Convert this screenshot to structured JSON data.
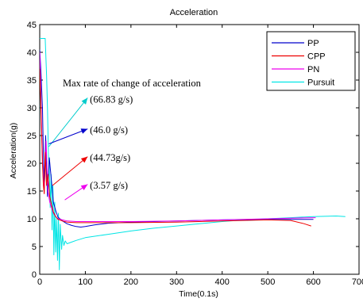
{
  "chart_data": {
    "type": "line",
    "title": "Acceleration",
    "xlabel": "Time(0.1s)",
    "ylabel": "Acceleration(g)",
    "xlim": [
      0,
      700
    ],
    "ylim": [
      0,
      45
    ],
    "xticks": [
      0,
      100,
      200,
      300,
      400,
      500,
      600,
      700
    ],
    "yticks": [
      0,
      5,
      10,
      15,
      20,
      25,
      30,
      35,
      40,
      45
    ],
    "xtick_labels": [
      "0",
      "100",
      "200",
      "300",
      "400",
      "500",
      "600",
      "700"
    ],
    "ytick_labels": [
      "0",
      "5",
      "10",
      "15",
      "20",
      "25",
      "30",
      "35",
      "40",
      "45"
    ],
    "grid": false,
    "legend_position": "top-right",
    "series": [
      {
        "name": "PP",
        "color": "#0000cc",
        "x": [
          0,
          3,
          6,
          8,
          10,
          13,
          17,
          21,
          25,
          30,
          35,
          40,
          50,
          60,
          70,
          80,
          90,
          100,
          120,
          150,
          200,
          300,
          400,
          500,
          600
        ],
        "y": [
          40.5,
          36,
          30,
          22,
          16,
          25,
          14,
          21,
          17.5,
          13,
          11.5,
          10.3,
          9.6,
          9.1,
          8.8,
          8.6,
          8.5,
          8.6,
          8.9,
          9.2,
          9.4,
          9.6,
          9.8,
          9.9,
          9.9
        ]
      },
      {
        "name": "CPP",
        "color": "#ee0000",
        "x": [
          0,
          2,
          4,
          6,
          8,
          10,
          12,
          15,
          18,
          22,
          26,
          30,
          35,
          40,
          50,
          60,
          80,
          100,
          150,
          200,
          300,
          400,
          500,
          550,
          580,
          595
        ],
        "y": [
          37,
          32,
          26,
          20,
          16,
          14.5,
          22,
          16,
          18,
          14,
          12.5,
          11.2,
          10.4,
          9.9,
          9.6,
          9.4,
          9.3,
          9.3,
          9.3,
          9.3,
          9.4,
          9.6,
          9.8,
          9.7,
          9.1,
          8.7
        ]
      },
      {
        "name": "PN",
        "color": "#ee00ee",
        "x": [
          0,
          2,
          4,
          6,
          8,
          10,
          14,
          18,
          22,
          26,
          30,
          35,
          40,
          50,
          60,
          80,
          100,
          150,
          200,
          300,
          400,
          500,
          600,
          605
        ],
        "y": [
          40,
          34,
          27,
          21,
          17,
          15.5,
          24,
          15,
          13,
          12,
          11,
          10.4,
          10,
          9.8,
          9.6,
          9.5,
          9.5,
          9.5,
          9.5,
          9.6,
          9.8,
          10,
          10.2,
          10.2
        ]
      },
      {
        "name": "Pursuit",
        "color": "#00e5e5",
        "x": [
          0,
          5,
          9,
          12,
          15,
          17,
          19,
          21,
          23,
          25,
          27,
          29,
          31,
          33,
          35,
          37,
          39,
          41,
          43,
          45,
          48,
          50,
          53,
          56,
          60,
          70,
          80,
          100,
          150,
          200,
          250,
          300,
          350,
          400,
          450,
          500,
          550,
          600,
          650,
          670
        ],
        "y": [
          42.5,
          42.5,
          42.5,
          42.5,
          36,
          30,
          22,
          19,
          12,
          18,
          8,
          16,
          3.5,
          13,
          4,
          10,
          2.5,
          11,
          0.8,
          9,
          4.5,
          7,
          5.2,
          6,
          5.5,
          5.8,
          6.1,
          6.6,
          7.2,
          7.8,
          8.3,
          8.7,
          9.1,
          9.5,
          9.8,
          10,
          10.2,
          10.4,
          10.5,
          10.4
        ]
      }
    ],
    "annotations": {
      "heading": "Max rate of change of acceleration",
      "labels": [
        "(66.83 g/s)",
        "(46.0 g/s)",
        "(44.73g/s)",
        "(3.57 g/s)"
      ],
      "label_anchors": [
        [
          110,
          31.5
        ],
        [
          110,
          26
        ],
        [
          110,
          21
        ],
        [
          110,
          16
        ]
      ],
      "arrows": [
        {
          "color": "#00cccc",
          "from": [
            20,
            23
          ],
          "to": [
            105,
            31.8
          ]
        },
        {
          "color": "#0000cc",
          "from": [
            20,
            23.5
          ],
          "to": [
            105,
            26.2
          ]
        },
        {
          "color": "#ee0000",
          "from": [
            28,
            16
          ],
          "to": [
            105,
            21.2
          ]
        },
        {
          "color": "#ee00ee",
          "from": [
            55,
            13.4
          ],
          "to": [
            105,
            16.2
          ]
        }
      ]
    }
  }
}
